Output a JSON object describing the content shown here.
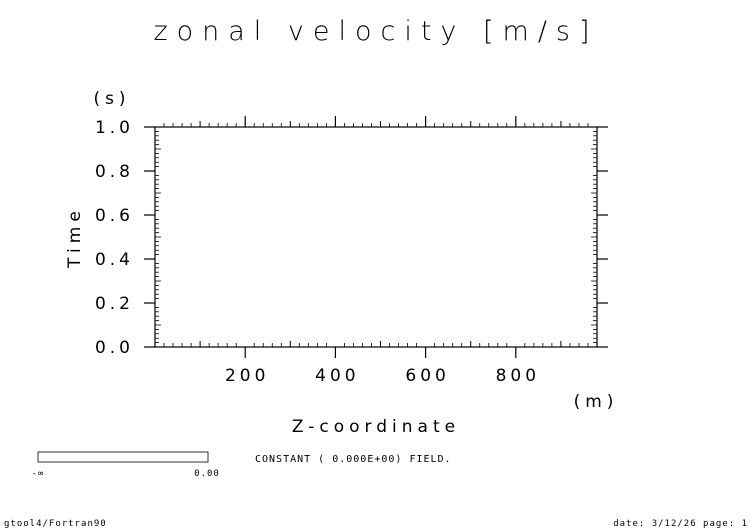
{
  "chart_data": {
    "type": "heatmap",
    "title": "zonal velocity [m/s]",
    "xlabel": "Z-coordinate",
    "xunit": "(m)",
    "ylabel": "Time",
    "yunit": "(s)",
    "xlim": [
      0,
      980
    ],
    "ylim": [
      0.0,
      1.0
    ],
    "xticks": [
      200,
      400,
      600,
      800
    ],
    "xtick_labels": [
      "200",
      "400",
      "600",
      "800"
    ],
    "yticks": [
      0.0,
      0.2,
      0.4,
      0.6,
      0.8,
      1.0
    ],
    "ytick_labels": [
      "0.0",
      "0.2",
      "0.4",
      "0.6",
      "0.8",
      "1.0"
    ],
    "values": [],
    "message": "CONSTANT ( 0.000E+00) FIELD.",
    "colorbar": {
      "min_label": "-∞",
      "max_label": "0.00"
    },
    "grid": false
  },
  "footer": {
    "left": "gtool4/Fortran90",
    "right": "date: 3/12/26 page: 1"
  }
}
